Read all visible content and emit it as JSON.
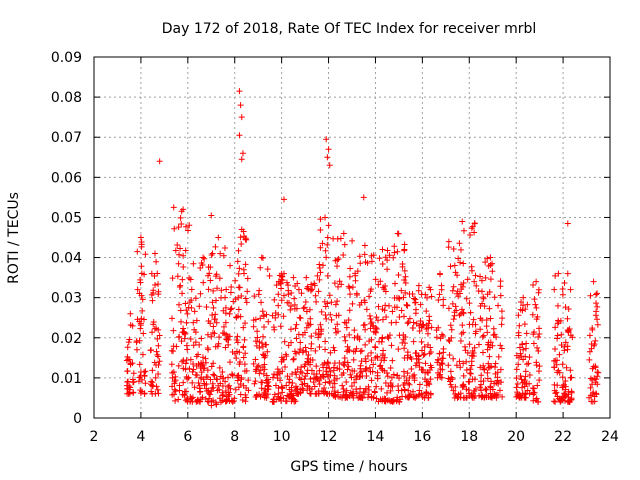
{
  "chart_data": {
    "type": "scatter",
    "title": "Day 172 of 2018, Rate Of TEC Index for receiver mrbl",
    "xlabel": "GPS time / hours",
    "ylabel": "ROTI / TECUs",
    "xlim": [
      2,
      24
    ],
    "ylim": [
      0,
      0.09
    ],
    "x_ticks": [
      "2",
      "4",
      "6",
      "8",
      "10",
      "12",
      "14",
      "16",
      "18",
      "20",
      "22",
      "24"
    ],
    "y_ticks": [
      "0",
      "0.01",
      "0.02",
      "0.03",
      "0.04",
      "0.05",
      "0.06",
      "0.07",
      "0.08",
      "0.09"
    ],
    "grid": true,
    "marker": "+",
    "marker_color": "#ff0000",
    "series": [
      {
        "name": "ROTI",
        "clusters": [
          {
            "x": [
              3.4,
              3.7
            ],
            "y": [
              0.006,
              0.026
            ]
          },
          {
            "x": [
              3.8,
              4.2
            ],
            "y": [
              0.006,
              0.045
            ]
          },
          {
            "x": [
              4.4,
              4.8
            ],
            "y": [
              0.006,
              0.041
            ]
          },
          {
            "x": [
              5.3,
              6.3
            ],
            "y": [
              0.004,
              0.052
            ]
          },
          {
            "x": [
              6.3,
              7.0
            ],
            "y": [
              0.004,
              0.04
            ]
          },
          {
            "x": [
              7.0,
              7.6
            ],
            "y": [
              0.003,
              0.045
            ]
          },
          {
            "x": [
              7.6,
              8.0
            ],
            "y": [
              0.004,
              0.038
            ]
          },
          {
            "x": [
              8.0,
              8.6
            ],
            "y": [
              0.004,
              0.047
            ]
          },
          {
            "x": [
              8.8,
              9.5
            ],
            "y": [
              0.005,
              0.04
            ]
          },
          {
            "x": [
              9.6,
              10.6
            ],
            "y": [
              0.004,
              0.036
            ]
          },
          {
            "x": [
              10.6,
              11.5
            ],
            "y": [
              0.006,
              0.035
            ]
          },
          {
            "x": [
              11.5,
              12.2
            ],
            "y": [
              0.006,
              0.05
            ]
          },
          {
            "x": [
              12.2,
              13.1
            ],
            "y": [
              0.005,
              0.046
            ]
          },
          {
            "x": [
              13.1,
              14.0
            ],
            "y": [
              0.005,
              0.043
            ]
          },
          {
            "x": [
              14.0,
              14.6
            ],
            "y": [
              0.004,
              0.042
            ]
          },
          {
            "x": [
              14.6,
              15.3
            ],
            "y": [
              0.004,
              0.046
            ]
          },
          {
            "x": [
              15.3,
              16.4
            ],
            "y": [
              0.005,
              0.033
            ]
          },
          {
            "x": [
              16.6,
              16.9
            ],
            "y": [
              0.01,
              0.036
            ]
          },
          {
            "x": [
              17.1,
              18.3
            ],
            "y": [
              0.005,
              0.049
            ]
          },
          {
            "x": [
              18.4,
              19.4
            ],
            "y": [
              0.005,
              0.04
            ]
          },
          {
            "x": [
              20.0,
              20.6
            ],
            "y": [
              0.005,
              0.03
            ]
          },
          {
            "x": [
              20.7,
              21.0
            ],
            "y": [
              0.004,
              0.034
            ]
          },
          {
            "x": [
              21.6,
              22.0
            ],
            "y": [
              0.004,
              0.036
            ]
          },
          {
            "x": [
              22.0,
              22.4
            ],
            "y": [
              0.004,
              0.036
            ]
          },
          {
            "x": [
              23.1,
              23.5
            ],
            "y": [
              0.004,
              0.034
            ]
          }
        ],
        "outliers": [
          {
            "x": 4.8,
            "y": 0.064
          },
          {
            "x": 5.4,
            "y": 0.0525
          },
          {
            "x": 7.0,
            "y": 0.0505
          },
          {
            "x": 8.2,
            "y": 0.0815
          },
          {
            "x": 8.25,
            "y": 0.078
          },
          {
            "x": 8.3,
            "y": 0.075
          },
          {
            "x": 8.2,
            "y": 0.0705
          },
          {
            "x": 8.35,
            "y": 0.066
          },
          {
            "x": 8.3,
            "y": 0.0645
          },
          {
            "x": 10.1,
            "y": 0.0545
          },
          {
            "x": 11.9,
            "y": 0.0695
          },
          {
            "x": 12.0,
            "y": 0.067
          },
          {
            "x": 11.95,
            "y": 0.065
          },
          {
            "x": 12.05,
            "y": 0.063
          },
          {
            "x": 13.5,
            "y": 0.055
          },
          {
            "x": 22.2,
            "y": 0.0485
          }
        ]
      }
    ]
  }
}
